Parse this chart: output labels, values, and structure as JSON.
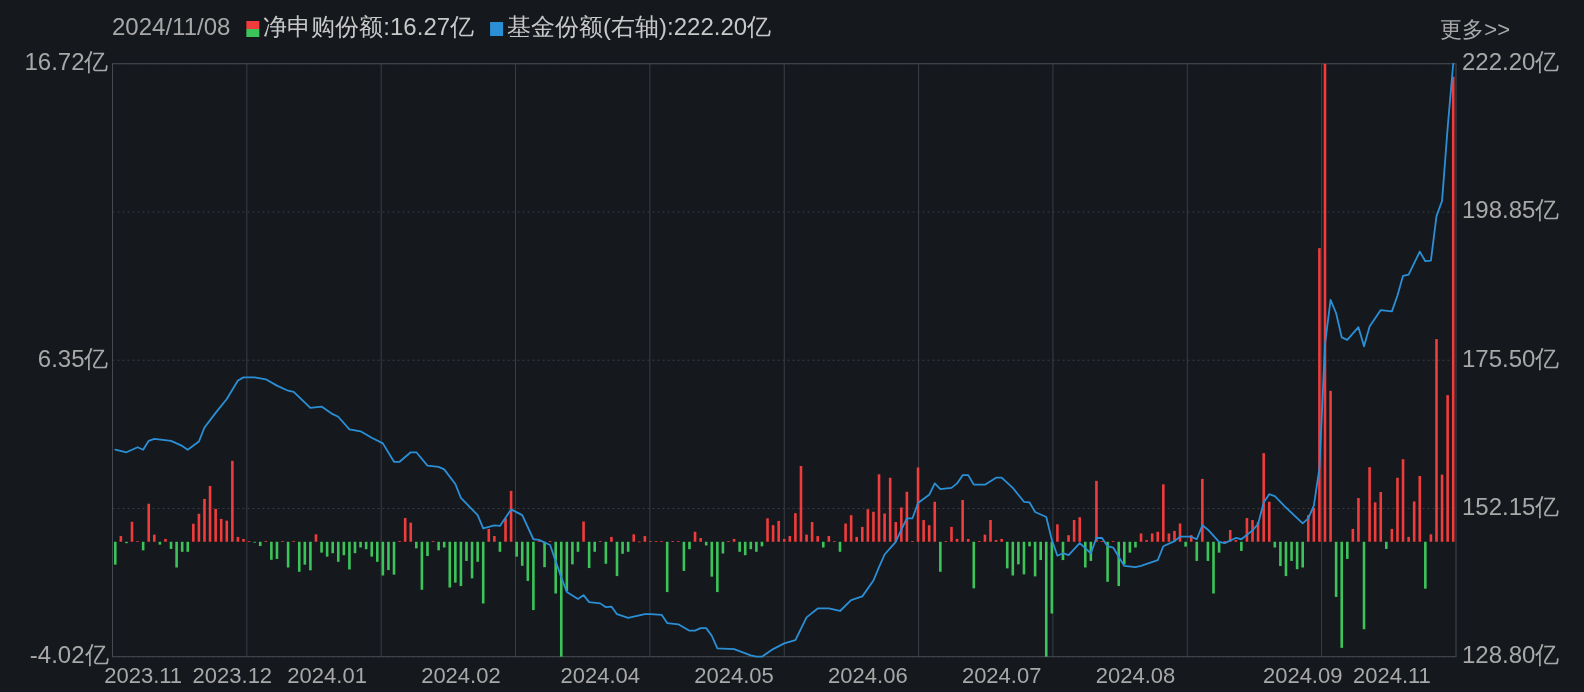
{
  "chart_data": {
    "type": "bar",
    "annotations": [
      "2024/11/08",
      "更多>>"
    ],
    "legend": "top left",
    "grid": true,
    "categories": [
      null,
      null,
      null,
      null,
      null,
      "2023.11",
      null,
      null,
      null,
      null,
      null,
      null,
      null,
      null,
      null,
      null,
      null,
      null,
      null,
      null,
      null,
      "2023.12",
      null,
      null,
      null,
      null,
      null,
      null,
      null,
      null,
      null,
      null,
      null,
      null,
      null,
      null,
      null,
      null,
      "2024.01",
      null,
      null,
      null,
      null,
      null,
      null,
      null,
      null,
      null,
      null,
      null,
      null,
      null,
      null,
      null,
      null,
      null,
      null,
      null,
      null,
      null,
      null,
      null,
      "2024.02",
      null,
      null,
      null,
      null,
      null,
      null,
      null,
      null,
      null,
      null,
      null,
      null,
      null,
      null,
      null,
      null,
      null,
      null,
      null,
      null,
      null,
      null,
      null,
      null,
      "2024.04",
      null,
      null,
      null,
      null,
      null,
      null,
      null,
      null,
      null,
      null,
      null,
      null,
      null,
      null,
      null,
      null,
      null,
      null,
      null,
      null,
      null,
      null,
      null,
      "2024.05",
      null,
      null,
      null,
      null,
      null,
      null,
      null,
      null,
      null,
      null,
      null,
      null,
      null,
      null,
      null,
      null,
      null,
      null,
      null,
      null,
      null,
      null,
      null,
      "2024.06",
      null,
      null,
      null,
      null,
      null,
      null,
      null,
      null,
      null,
      null,
      null,
      null,
      null,
      null,
      null,
      null,
      null,
      null,
      null,
      null,
      null,
      null,
      null,
      "2024.07",
      null,
      null,
      null,
      null,
      null,
      null,
      null,
      null,
      null,
      null,
      null,
      null,
      null,
      null,
      null,
      null,
      null,
      null,
      null,
      null,
      null,
      null,
      null,
      "2024.08",
      null,
      null,
      null,
      null,
      null,
      null,
      null,
      null,
      null,
      null,
      null,
      null,
      null,
      null,
      null,
      null,
      null,
      null,
      null,
      null,
      null,
      null,
      null,
      null,
      null,
      null,
      null,
      null,
      null,
      "2024.09",
      null,
      null,
      null,
      null,
      null,
      null,
      null,
      null,
      null,
      null,
      null,
      null,
      null,
      null,
      null,
      "2024.11",
      null,
      null,
      null,
      null,
      null,
      null,
      null,
      null,
      null,
      null,
      null
    ],
    "ylim": [
      -4.02,
      16.72
    ],
    "yticks": [
      {
        "value": 16.72,
        "label": "16.72亿"
      },
      {
        "value": 11.535,
        "label": null
      },
      {
        "value": 6.35,
        "label": "6.35亿"
      },
      {
        "value": 1.165,
        "label": null
      },
      {
        "value": -4.02,
        "label": "-4.02亿"
      }
    ],
    "y2lim": [
      128.8,
      222.2
    ],
    "y2ticks": [
      {
        "value": 222.2,
        "label": "222.20亿"
      },
      {
        "value": 198.85,
        "label": "198.85亿"
      },
      {
        "value": 175.5,
        "label": "175.50亿"
      },
      {
        "value": 152.15,
        "label": "152.15亿"
      },
      {
        "value": 128.8,
        "label": "128.80亿"
      }
    ],
    "series": [
      {
        "name": "净申购份额:16.27亿",
        "values": [
          -0.8,
          0.2,
          -0.05,
          0.7,
          0.02,
          -0.3,
          1.33,
          0.25,
          -0.1,
          0.1,
          -0.25,
          -0.9,
          -0.35,
          -0.35,
          0.63,
          0.98,
          1.5,
          1.95,
          1.15,
          0.8,
          0.74,
          2.83,
          0.17,
          0.1,
          0.02,
          -0.03,
          -0.15,
          0.03,
          -0.63,
          -0.6,
          0.02,
          -0.9,
          0.03,
          -1.05,
          -0.8,
          -1.0,
          0.26,
          -0.38,
          -0.52,
          -0.4,
          -0.7,
          -0.47,
          -0.97,
          -0.4,
          -0.2,
          -0.26,
          -0.52,
          -0.7,
          -1.18,
          -0.99,
          -1.15,
          0.02,
          0.83,
          0.67,
          -0.23,
          -1.68,
          -0.5,
          0.02,
          -0.3,
          -0.2,
          -1.6,
          -1.43,
          -1.55,
          -0.67,
          -1.28,
          -0.7,
          -2.16,
          0.45,
          0.2,
          -0.35,
          0.82,
          1.78,
          -0.52,
          -0.84,
          -1.37,
          -2.39,
          0.02,
          -0.89,
          0.03,
          -1.81,
          -4.02,
          -1.72,
          -0.79,
          -0.35,
          0.71,
          -0.92,
          -0.35,
          0.02,
          -0.77,
          0.17,
          -1.2,
          -0.42,
          -0.35,
          0.26,
          0.01,
          0.2,
          0.02,
          0.02,
          0.02,
          -1.76,
          0.02,
          0.02,
          -1.02,
          -0.26,
          0.35,
          0.13,
          -0.13,
          -1.22,
          -1.76,
          -0.41,
          0.02,
          0.1,
          -0.35,
          -0.47,
          -0.26,
          -0.35,
          -0.16,
          0.82,
          0.58,
          0.73,
          0.1,
          0.2,
          1.0,
          2.65,
          0.25,
          0.69,
          0.2,
          -0.2,
          0.2,
          0.02,
          -0.35,
          0.64,
          0.93,
          0.17,
          0.52,
          1.14,
          1.05,
          2.36,
          0.99,
          2.24,
          0.69,
          1.2,
          1.75,
          0.02,
          2.6,
          0.76,
          0.58,
          1.4,
          -1.05,
          0.02,
          0.52,
          0.1,
          1.46,
          0.1,
          -1.63,
          0.02,
          0.25,
          0.76,
          0.06,
          0.1,
          -0.93,
          -1.18,
          -0.79,
          -1.14,
          -0.16,
          -1.21,
          -0.64,
          -4.02,
          -2.51,
          0.61,
          -0.64,
          0.23,
          0.76,
          0.86,
          -0.9,
          -0.67,
          2.13,
          0.02,
          -1.4,
          0.02,
          -1.55,
          -0.79,
          -0.38,
          -0.2,
          0.29,
          0.06,
          0.29,
          0.35,
          2.01,
          0.29,
          0.38,
          0.64,
          -0.17,
          0.23,
          -0.67,
          2.2,
          -0.67,
          -1.81,
          -0.38,
          0.02,
          0.41,
          0.06,
          -0.32,
          0.83,
          0.76,
          0.69,
          3.1,
          1.4,
          -0.2,
          -0.85,
          -1.2,
          -0.67,
          -0.96,
          -0.9,
          0.93,
          1.19,
          10.27,
          16.72,
          5.28,
          -1.93,
          -3.71,
          -0.6,
          0.45,
          1.53,
          -3.06,
          2.61,
          1.38,
          1.74,
          -0.25,
          0.45,
          2.24,
          2.89,
          0.17,
          1.41,
          2.3,
          -1.64,
          0.26,
          7.09,
          2.35,
          5.13,
          16.27
        ],
        "colors": [
          "#3cc45a",
          "#f03c3c",
          "#3cc45a",
          "#f03c3c",
          "#f03c3c",
          "#3cc45a",
          "#f03c3c",
          "#f03c3c",
          "#3cc45a",
          "#f03c3c",
          "#3cc45a",
          "#3cc45a",
          "#3cc45a",
          "#3cc45a",
          "#f03c3c",
          "#f03c3c",
          "#f03c3c",
          "#f03c3c",
          "#f03c3c",
          "#f03c3c",
          "#f03c3c",
          "#f03c3c",
          "#f03c3c",
          "#f03c3c",
          "#f03c3c",
          "#3cc45a",
          "#3cc45a",
          "#f03c3c",
          "#3cc45a",
          "#3cc45a",
          "#f03c3c",
          "#3cc45a",
          "#f03c3c",
          "#3cc45a",
          "#3cc45a",
          "#3cc45a",
          "#f03c3c",
          "#3cc45a",
          "#3cc45a",
          "#3cc45a",
          "#3cc45a",
          "#3cc45a",
          "#3cc45a",
          "#3cc45a",
          "#3cc45a",
          "#3cc45a",
          "#3cc45a",
          "#3cc45a",
          "#3cc45a",
          "#3cc45a",
          "#3cc45a",
          "#f03c3c",
          "#f03c3c",
          "#f03c3c",
          "#3cc45a",
          "#3cc45a",
          "#3cc45a",
          "#f03c3c",
          "#3cc45a",
          "#3cc45a",
          "#3cc45a",
          "#3cc45a",
          "#3cc45a",
          "#3cc45a",
          "#3cc45a",
          "#3cc45a",
          "#3cc45a",
          "#f03c3c",
          "#f03c3c",
          "#3cc45a",
          "#f03c3c",
          "#f03c3c",
          "#3cc45a",
          "#3cc45a",
          "#3cc45a",
          "#3cc45a",
          "#f03c3c",
          "#3cc45a",
          "#f03c3c",
          "#3cc45a",
          "#3cc45a",
          "#3cc45a",
          "#3cc45a",
          "#3cc45a",
          "#f03c3c",
          "#3cc45a",
          "#3cc45a",
          "#f03c3c",
          "#3cc45a",
          "#f03c3c",
          "#3cc45a",
          "#3cc45a",
          "#3cc45a",
          "#f03c3c",
          "#f03c3c",
          "#f03c3c",
          "#f03c3c",
          "#f03c3c",
          "#f03c3c",
          "#3cc45a",
          "#f03c3c",
          "#f03c3c",
          "#3cc45a",
          "#3cc45a",
          "#f03c3c",
          "#f03c3c",
          "#3cc45a",
          "#3cc45a",
          "#3cc45a",
          "#3cc45a",
          "#f03c3c",
          "#f03c3c",
          "#3cc45a",
          "#3cc45a",
          "#3cc45a",
          "#3cc45a",
          "#3cc45a",
          "#f03c3c",
          "#f03c3c",
          "#f03c3c",
          "#f03c3c",
          "#f03c3c",
          "#f03c3c",
          "#f03c3c",
          "#f03c3c",
          "#f03c3c",
          "#f03c3c",
          "#3cc45a",
          "#f03c3c",
          "#f03c3c",
          "#3cc45a",
          "#f03c3c",
          "#f03c3c",
          "#f03c3c",
          "#f03c3c",
          "#f03c3c",
          "#f03c3c",
          "#f03c3c",
          "#f03c3c",
          "#f03c3c",
          "#f03c3c",
          "#f03c3c",
          "#f03c3c",
          "#f03c3c",
          "#f03c3c",
          "#f03c3c",
          "#f03c3c",
          "#f03c3c",
          "#3cc45a",
          "#f03c3c",
          "#f03c3c",
          "#f03c3c",
          "#f03c3c",
          "#f03c3c",
          "#3cc45a",
          "#f03c3c",
          "#f03c3c",
          "#f03c3c",
          "#f03c3c",
          "#f03c3c",
          "#3cc45a",
          "#3cc45a",
          "#3cc45a",
          "#3cc45a",
          "#3cc45a",
          "#3cc45a",
          "#3cc45a",
          "#3cc45a",
          "#3cc45a",
          "#f03c3c",
          "#3cc45a",
          "#f03c3c",
          "#f03c3c",
          "#f03c3c",
          "#3cc45a",
          "#3cc45a",
          "#f03c3c",
          "#f03c3c",
          "#3cc45a",
          "#f03c3c",
          "#3cc45a",
          "#3cc45a",
          "#3cc45a",
          "#3cc45a",
          "#f03c3c",
          "#f03c3c",
          "#f03c3c",
          "#f03c3c",
          "#f03c3c",
          "#f03c3c",
          "#f03c3c",
          "#f03c3c",
          "#3cc45a",
          "#f03c3c",
          "#3cc45a",
          "#f03c3c",
          "#3cc45a",
          "#3cc45a",
          "#3cc45a",
          "#f03c3c",
          "#f03c3c",
          "#f03c3c",
          "#3cc45a",
          "#f03c3c",
          "#f03c3c",
          "#f03c3c",
          "#f03c3c",
          "#f03c3c",
          "#3cc45a",
          "#3cc45a",
          "#3cc45a",
          "#3cc45a",
          "#3cc45a",
          "#3cc45a",
          "#f03c3c",
          "#f03c3c",
          "#f03c3c",
          "#f03c3c",
          "#f03c3c",
          "#3cc45a",
          "#3cc45a",
          "#3cc45a",
          "#f03c3c",
          "#f03c3c",
          "#3cc45a",
          "#f03c3c",
          "#f03c3c",
          "#f03c3c",
          "#3cc45a",
          "#f03c3c",
          "#f03c3c",
          "#f03c3c",
          "#f03c3c",
          "#f03c3c",
          "#f03c3c",
          "#3cc45a",
          "#f03c3c",
          "#f03c3c",
          "#f03c3c",
          "#f03c3c",
          "#f03c3c"
        ]
      },
      {
        "name": "基金份额(右轴):222.20亿",
        "type": "line",
        "axis": "y2",
        "color": "#2b8fd6",
        "values": [
          161.4,
          null,
          161.0,
          null,
          161.8,
          161.4,
          162.8,
          163.1,
          null,
          null,
          162.8,
          null,
          162.0,
          161.4,
          null,
          162.7,
          164.9,
          null,
          167.2,
          null,
          169.4,
          null,
          172.3,
          172.8,
          null,
          172.8,
          null,
          172.5,
          null,
          171.5,
          null,
          170.7,
          170.5,
          null,
          null,
          168.0,
          null,
          168.2,
          null,
          167.0,
          166.6,
          null,
          164.6,
          null,
          164.3,
          null,
          163.3,
          null,
          162.4,
          null,
          159.5,
          159.5,
          null,
          161.0,
          161.0,
          null,
          158.9,
          null,
          158.7,
          158.3,
          null,
          156.0,
          153.8,
          null,
          null,
          151.1,
          149.0,
          null,
          149.5,
          149.4,
          null,
          152.0,
          null,
          151.1,
          null,
          147.3,
          147.2,
          null,
          146.4,
          null,
          141.3,
          139.0,
          null,
          137.9,
          138.5,
          137.4,
          null,
          137.2,
          136.6,
          136.7,
          135.5,
          null,
          134.9,
          null,
          135.3,
          135.5,
          135.5,
          null,
          135.4,
          134.1,
          null,
          133.9,
          null,
          132.9,
          132.9,
          133.3,
          133.3,
          132.1,
          130.1,
          null,
          null,
          130.0,
          null,
          null,
          129.0,
          128.8,
          128.8,
          null,
          130.0,
          null,
          130.9,
          null,
          131.4,
          null,
          135.0,
          null,
          136.4,
          null,
          136.4,
          null,
          136.0,
          null,
          137.7,
          null,
          138.3,
          null,
          140.8,
          142.9,
          144.9,
          null,
          146.9,
          148.8,
          150.6,
          150.6,
          153.0,
          null,
          154.3,
          156.1,
          155.2,
          null,
          155.4,
          156.1,
          157.4,
          157.4,
          155.9,
          null,
          155.9,
          null,
          157.0,
          157.0,
          null,
          155.4,
          null,
          153.2,
          153.1,
          151.6,
          null,
          150.8,
          147.2,
          144.7,
          145.1,
          144.8,
          null,
          146.7,
          null,
          145.1,
          147.5,
          147.5,
          146.2,
          146.0,
          null,
          143.1,
          null,
          142.9,
          143.1,
          null,
          null,
          144.0,
          146.2,
          null,
          147.0,
          147.7,
          null,
          147.7,
          147.3,
          149.5,
          148.8,
          null,
          146.9,
          146.7,
          null,
          147.5,
          147.3,
          null,
          148.7,
          149.7,
          153.1,
          154.4,
          154.1,
          null,
          152.3,
          null,
          null,
          149.8,
          150.6,
          152.6,
          158.5,
          178.0,
          185.0,
          182.9,
          179.1,
          178.7,
          null,
          180.7,
          177.7,
          180.8,
          null,
          183.4,
          null,
          183.2,
          185.7,
          188.8,
          189.0,
          null,
          192.6,
          191.1,
          191.2,
          198.2,
          200.6,
          212.1,
          222.2
        ]
      }
    ]
  }
}
